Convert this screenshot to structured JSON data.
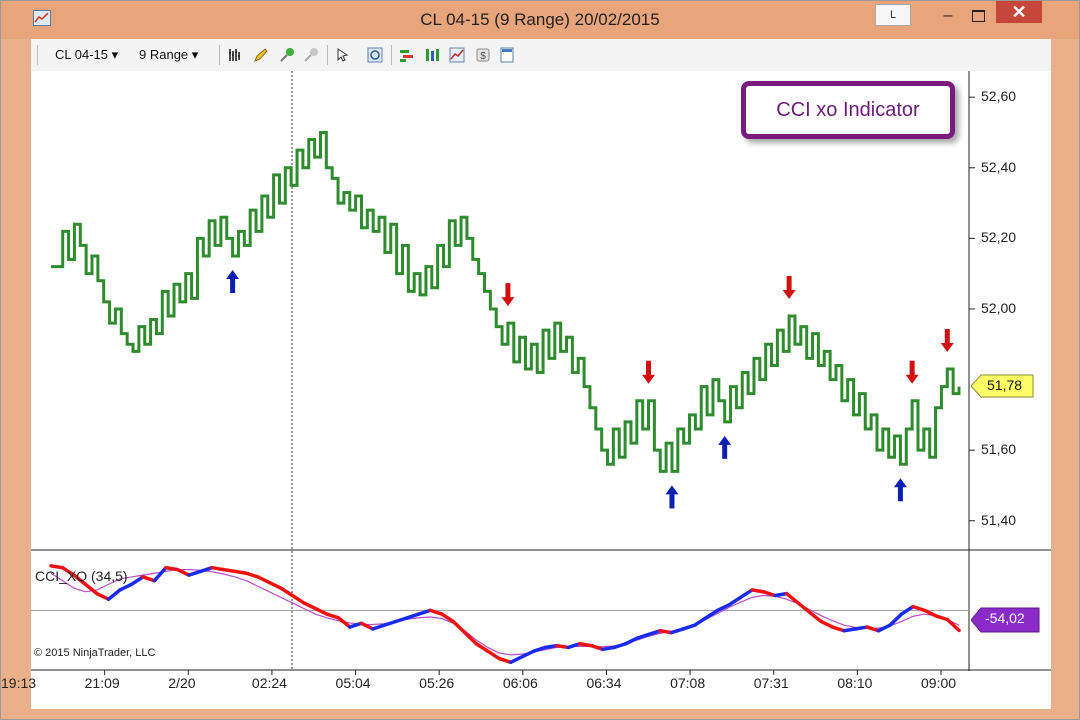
{
  "window": {
    "title": "CL 04-15 (9 Range)  20/02/2015",
    "l_button": "L",
    "minimize": "–",
    "close": "✕"
  },
  "toolbar": {
    "instrument": "CL 04-15 ▾",
    "interval": "9 Range ▾",
    "icons": [
      "bar-style-icon",
      "pencil-icon",
      "add-indicator-icon",
      "remove-indicator-icon",
      "cursor-icon",
      "zoom-icon",
      "data-series-icon",
      "strategies-icon",
      "chart-icon",
      "money-icon",
      "properties-icon"
    ]
  },
  "chart": {
    "annotation": "CCI xo Indicator",
    "copyright": "© 2015 NinjaTrader, LLC",
    "indicator_label": "CCI_XO (34,5)",
    "last_price": "51,78",
    "indicator_value": "-54,02",
    "price_ticks": [
      "52,60",
      "52,40",
      "52,20",
      "52,00",
      "51,60",
      "51,40"
    ],
    "time_ticks": [
      "19:13",
      "21:09",
      "2/20",
      "02:24",
      "05:04",
      "05:26",
      "06:06",
      "06:34",
      "07:08",
      "07:31",
      "08:10",
      "09:00"
    ],
    "colors": {
      "price": "#2e8b2e",
      "up_arrow": "#0b20b0",
      "down_arrow": "#d01010",
      "cci_up": "#1a2bf0",
      "cci_down": "#f01010",
      "signal": "#b54cc8",
      "price_tag": "#ffff66",
      "indicator_tag": "#8a2bc9"
    }
  },
  "chart_data": {
    "type": "line",
    "price_series": [
      52.12,
      52.12,
      52.22,
      52.14,
      52.24,
      52.18,
      52.1,
      52.15,
      52.08,
      52.02,
      51.96,
      52.0,
      51.93,
      51.9,
      51.88,
      51.95,
      51.9,
      51.97,
      51.93,
      52.05,
      51.98,
      52.07,
      52.02,
      52.1,
      52.03,
      52.2,
      52.15,
      52.25,
      52.18,
      52.26,
      52.2,
      52.15,
      52.22,
      52.18,
      52.28,
      52.22,
      52.32,
      52.26,
      52.38,
      52.3,
      52.4,
      52.35,
      52.45,
      52.4,
      52.48,
      52.43,
      52.5,
      52.4,
      52.37,
      52.3,
      52.33,
      52.28,
      52.32,
      52.23,
      52.28,
      52.22,
      52.26,
      52.16,
      52.24,
      52.1,
      52.18,
      52.05,
      52.1,
      52.04,
      52.12,
      52.06,
      52.18,
      52.12,
      52.25,
      52.18,
      52.26,
      52.2,
      52.14,
      52.1,
      52.05,
      52.0,
      51.95,
      51.9,
      51.96,
      51.85,
      51.92,
      51.83,
      51.9,
      51.82,
      51.94,
      51.86,
      51.96,
      51.88,
      51.92,
      51.82,
      51.86,
      51.78,
      51.72,
      51.66,
      51.6,
      51.56,
      51.66,
      51.58,
      51.68,
      51.62,
      51.74,
      51.66,
      51.74,
      51.6,
      51.54,
      51.62,
      51.54,
      51.66,
      51.62,
      51.7,
      51.66,
      51.78,
      51.7,
      51.8,
      51.74,
      51.68,
      51.78,
      51.72,
      51.82,
      51.76,
      51.86,
      51.8,
      51.9,
      51.84,
      51.94,
      51.88,
      51.98,
      51.9,
      51.95,
      51.86,
      51.93,
      51.84,
      51.88,
      51.8,
      51.84,
      51.74,
      51.8,
      51.7,
      51.76,
      51.66,
      51.7,
      51.6,
      51.66,
      51.58,
      51.64,
      51.56,
      51.66,
      51.74,
      51.6,
      51.66,
      51.58,
      51.72,
      51.78,
      51.83,
      51.76,
      51.78
    ],
    "cci_xo": [
      120,
      115,
      95,
      70,
      45,
      30,
      55,
      70,
      90,
      80,
      115,
      110,
      95,
      105,
      115,
      110,
      105,
      100,
      90,
      75,
      60,
      40,
      20,
      5,
      -10,
      -20,
      -45,
      -35,
      -50,
      -40,
      -30,
      -20,
      -10,
      0,
      -10,
      -30,
      -60,
      -90,
      -110,
      -130,
      -140,
      -125,
      -110,
      -100,
      -95,
      -100,
      -90,
      -95,
      -105,
      -100,
      -90,
      -75,
      -65,
      -55,
      -60,
      -50,
      -40,
      -20,
      0,
      15,
      35,
      55,
      50,
      40,
      45,
      20,
      -5,
      -30,
      -45,
      -55,
      -50,
      -45,
      -55,
      -40,
      -10,
      10,
      0,
      -15,
      -25,
      -54
    ],
    "cci_signal": [
      100,
      80,
      60,
      50,
      55,
      70,
      85,
      90,
      95,
      100,
      105,
      110,
      110,
      108,
      104,
      98,
      90,
      80,
      65,
      50,
      35,
      20,
      5,
      -10,
      -20,
      -28,
      -34,
      -38,
      -38,
      -36,
      -30,
      -24,
      -20,
      -18,
      -22,
      -35,
      -55,
      -80,
      -100,
      -115,
      -120,
      -118,
      -112,
      -106,
      -100,
      -98,
      -97,
      -97,
      -98,
      -96,
      -90,
      -80,
      -70,
      -62,
      -56,
      -48,
      -38,
      -24,
      -8,
      8,
      22,
      35,
      40,
      38,
      30,
      18,
      2,
      -14,
      -28,
      -40,
      -46,
      -48,
      -48,
      -42,
      -30,
      -16,
      -10,
      -15,
      -25,
      -40
    ],
    "cci_ylim": [
      -150,
      160
    ],
    "ylim": [
      51.32,
      52.66
    ]
  }
}
